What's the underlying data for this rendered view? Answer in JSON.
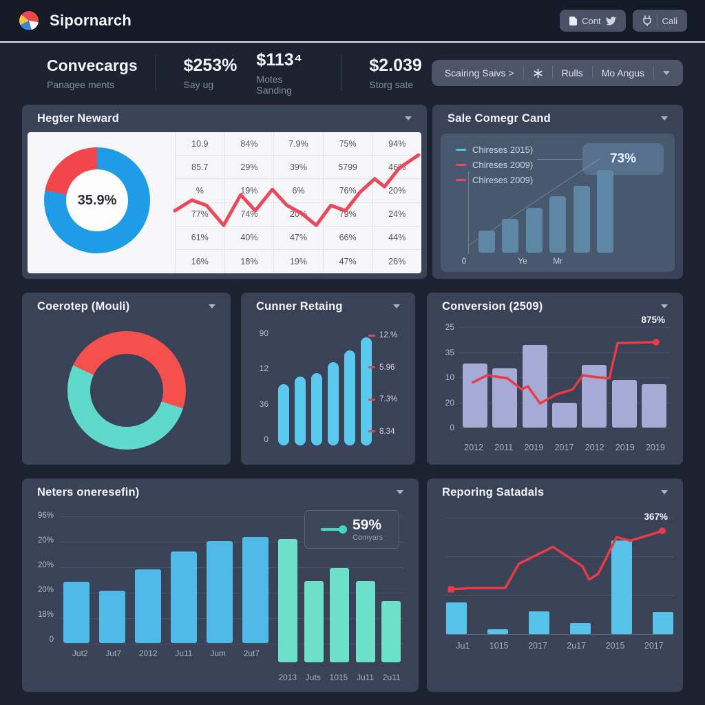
{
  "header": {
    "app_title": "Sipornarch",
    "btn_cont_label": "Cont",
    "btn_cali_label": "Cali"
  },
  "stats": {
    "title": "Convecargs",
    "subtitle": "Panagee ments",
    "items": [
      {
        "value": "$253%",
        "label": "Say ug"
      },
      {
        "value": "$113⁴",
        "label": "Motes Sanding"
      },
      {
        "value": "$2.039",
        "label": "Storg sate"
      }
    ],
    "toolbar": {
      "item1": "Scairing Saivs >",
      "item2": "Rulls",
      "item3": "Mo Angus"
    }
  },
  "panels": {
    "hegter": {
      "title": "Hegter Neward",
      "donut": {
        "center_label": "35.9%",
        "from_deg": 0,
        "slices": [
          {
            "name": "blue",
            "color": "#1e9ce6",
            "pct": 78
          },
          {
            "name": "red",
            "color": "#f2464d",
            "pct": 22
          }
        ]
      },
      "table": {
        "rows": [
          [
            "10.9",
            "84%",
            "7.9%",
            "75%",
            "94%"
          ],
          [
            "85.7",
            "29%",
            "39%",
            "5799",
            "46%"
          ],
          [
            "%",
            "19%",
            "6%",
            "76%",
            "20%"
          ],
          [
            "77%",
            "74%",
            "20%",
            "79%",
            "24%"
          ],
          [
            "61%",
            "40%",
            "47%",
            "66%",
            "44%"
          ],
          [
            "16%",
            "18%",
            "19%",
            "47%",
            "26%"
          ]
        ]
      },
      "line": {
        "type": "line",
        "color": "#e8495b",
        "width": 5,
        "points": [
          [
            0,
            44
          ],
          [
            7,
            52
          ],
          [
            13,
            48
          ],
          [
            20,
            33
          ],
          [
            27,
            56
          ],
          [
            33,
            44
          ],
          [
            40,
            60
          ],
          [
            46,
            48
          ],
          [
            52,
            42
          ],
          [
            58,
            33
          ],
          [
            64,
            48
          ],
          [
            70,
            44
          ],
          [
            76,
            58
          ],
          [
            82,
            68
          ],
          [
            86,
            62
          ],
          [
            92,
            76
          ],
          [
            100,
            86
          ]
        ]
      }
    },
    "sale": {
      "title": "Sale Comegr Cand",
      "legend": [
        {
          "label": "Chireses 2015)",
          "color": "#55c8d8"
        },
        {
          "label": "Chireses 2009)",
          "color": "#f0465a"
        },
        {
          "label": "Chireses 2009)",
          "color": "#f0465a"
        }
      ],
      "badge_value": "73%",
      "bars": {
        "type": "bar",
        "color": "#5d87a4",
        "values": [
          25,
          38,
          50,
          63,
          75,
          92
        ]
      },
      "xlabels": [
        "0",
        "Ye",
        "Mr"
      ],
      "trend": {
        "type": "line",
        "color": "rgba(255,255,255,0.16)",
        "width": 1.5,
        "points": [
          [
            0,
            8
          ],
          [
            100,
            97
          ]
        ]
      }
    },
    "coerotep": {
      "title": "Coerotep (Mouli)",
      "donut": {
        "from_deg": 295,
        "slices": [
          {
            "name": "red",
            "color": "#f5504b",
            "pct": 48
          },
          {
            "name": "teal",
            "color": "#5fd9cb",
            "pct": 52
          }
        ]
      }
    },
    "cunner": {
      "title": "Cunner Retaing",
      "yaxis": [
        "90",
        "12",
        "36",
        "0"
      ],
      "bars": {
        "type": "bar",
        "color": "#5bc9ee",
        "values": [
          55,
          62,
          65,
          75,
          85,
          97
        ]
      },
      "legend": [
        {
          "label": "12.%",
          "color": "#e0475c"
        },
        {
          "label": "5.96",
          "color": "#e0475c"
        },
        {
          "label": "7.3%",
          "color": "#e0475c"
        },
        {
          "label": "8.34",
          "color": "#e0475c"
        }
      ]
    },
    "conversion": {
      "title": "Conversion (2509)",
      "yaxis": [
        "25",
        "35",
        "10",
        "20",
        "0"
      ],
      "categories": [
        "2012",
        "2011",
        "2019",
        "2017",
        "2012",
        "2019",
        "2019"
      ],
      "bars": {
        "type": "bar",
        "color": "#a6abd6",
        "values": [
          64,
          59,
          82,
          25,
          62,
          47,
          43
        ]
      },
      "line": {
        "type": "line",
        "color": "#e83b47",
        "width": 3.5,
        "end_dot": true,
        "points": [
          [
            5,
            45
          ],
          [
            12,
            52
          ],
          [
            22,
            49
          ],
          [
            29,
            38
          ],
          [
            32,
            41
          ],
          [
            38,
            24
          ],
          [
            46,
            33
          ],
          [
            54,
            38
          ],
          [
            59,
            52
          ],
          [
            66,
            50
          ],
          [
            72,
            49
          ],
          [
            76,
            84
          ],
          [
            95,
            85
          ]
        ]
      },
      "endpoint_label": "875%"
    },
    "neters": {
      "title": "Neters oneresefin)",
      "yaxis": [
        "96%",
        "20%",
        "20%",
        "20%",
        "18%",
        "0"
      ],
      "badge": {
        "value": "59%",
        "label": "Comyars",
        "icon_color": "#43d6c5"
      },
      "blue": {
        "type": "bar",
        "color": "#4fb9e8",
        "values": [
          48,
          41,
          58,
          72,
          80,
          83
        ],
        "categories": [
          "Jut2",
          "Jut7",
          "2012",
          "Ju11",
          "Jum",
          "2ut7"
        ]
      },
      "teal": {
        "type": "bar",
        "color": "#6ce0c8",
        "values": [
          97,
          64,
          74,
          64,
          48
        ],
        "categories": [
          "2013",
          "Juts",
          "1015",
          "Ju11",
          "2u11"
        ]
      }
    },
    "reporing": {
      "title": "Reporing Satadals",
      "categories": [
        "Ju1",
        "1015",
        "2017",
        "2u17",
        "2015",
        "2017"
      ],
      "bars": {
        "type": "bar",
        "color": "#58c3ea",
        "values": [
          26,
          4,
          19,
          9,
          77,
          18
        ]
      },
      "line": {
        "type": "line",
        "color": "#e83b47",
        "width": 3.5,
        "end_dot": true,
        "start_square": true,
        "points": [
          [
            2,
            37
          ],
          [
            11,
            38
          ],
          [
            26,
            38
          ],
          [
            32,
            58
          ],
          [
            47,
            72
          ],
          [
            60,
            56
          ],
          [
            63,
            45
          ],
          [
            67,
            50
          ],
          [
            75,
            80
          ],
          [
            81,
            77
          ],
          [
            95,
            85
          ]
        ]
      },
      "endpoint_label": "367%"
    }
  }
}
